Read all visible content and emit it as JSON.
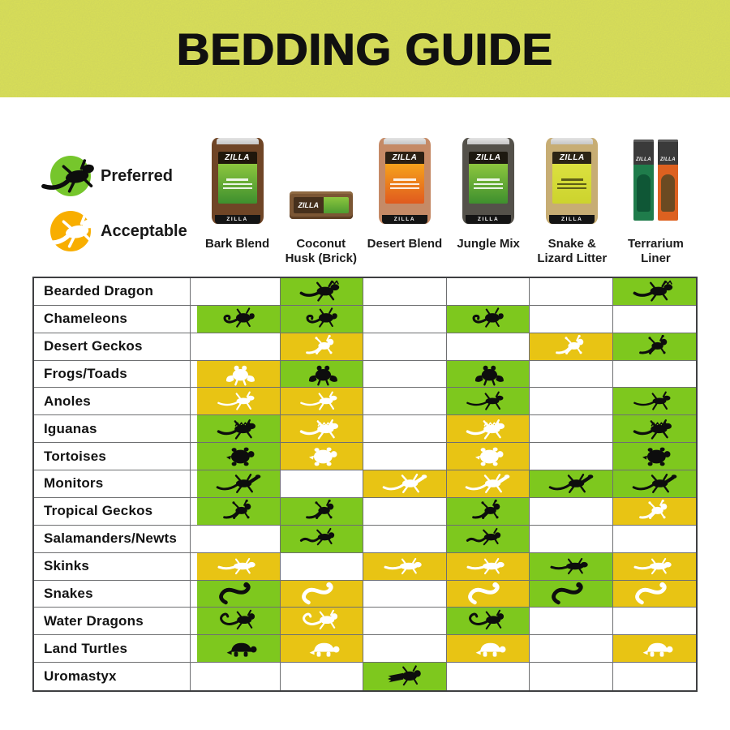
{
  "header": {
    "title": "BEDDING GUIDE"
  },
  "brand": "ZILLA",
  "legend": {
    "preferred": "Preferred",
    "acceptable": "Acceptable"
  },
  "colors": {
    "banner_lime": "#dde455",
    "preferred_green": "#7ec81e",
    "acceptable_yellow": "#e8c414",
    "legend_preferred_green": "#76c62c",
    "legend_acceptable_orange": "#f8ae00"
  },
  "products": [
    {
      "name": "Bark Blend",
      "lines": [
        "Bark Blend"
      ],
      "type": "bag",
      "body": "#6f4526",
      "label_top": "#8cc63e",
      "label_bottom": "#3e8f2e",
      "dark_lines": false
    },
    {
      "name": "Coconut Husk (Brick)",
      "lines": [
        "Coconut",
        "Husk (Brick)"
      ],
      "type": "brick",
      "body": "#7b5634",
      "label_top": "#8cc63e",
      "label_bottom": "#4d9b30",
      "dark_lines": false
    },
    {
      "name": "Desert Blend",
      "lines": [
        "Desert Blend"
      ],
      "type": "bag",
      "body": "#c58a66",
      "label_top": "#f6a21c",
      "label_bottom": "#e05a1e",
      "dark_lines": false
    },
    {
      "name": "Jungle Mix",
      "lines": [
        "Jungle Mix"
      ],
      "type": "bag",
      "body": "#54514a",
      "label_top": "#8cc63e",
      "label_bottom": "#3e8f2e",
      "dark_lines": false
    },
    {
      "name": "Snake & Lizard Litter",
      "lines": [
        "Snake &",
        "Lizard Litter"
      ],
      "type": "bag",
      "body": "#c7ad74",
      "label_top": "#dce13f",
      "label_bottom": "#ccd32e",
      "dark_lines": true
    },
    {
      "name": "Terrarium Liner",
      "lines": [
        "Terrarium",
        "Liner"
      ],
      "type": "liner",
      "body": "#3a3a3a",
      "left_panel": "#1f7c4b",
      "left_swatch": "#0f5736",
      "right_panel": "#dd6120",
      "right_swatch": "#6b4a22",
      "dark_lines": false
    }
  ],
  "chart_data": {
    "type": "table",
    "title": "BEDDING GUIDE",
    "cell_values": [
      "preferred",
      "acceptable",
      "none"
    ],
    "value_style": {
      "preferred": "green cell with black animal silhouette",
      "acceptable": "yellow cell with white animal silhouette",
      "none": "empty white cell"
    },
    "columns": [
      "Bark Blend",
      "Coconut Husk (Brick)",
      "Desert Blend",
      "Jungle Mix",
      "Snake & Lizard Litter",
      "Terrarium Liner"
    ],
    "rows": [
      {
        "label": "Bearded Dragon",
        "icon": "bearded-dragon",
        "values": [
          "none",
          "preferred",
          "none",
          "none",
          "none",
          "preferred"
        ]
      },
      {
        "label": "Chameleons",
        "icon": "chameleon",
        "values": [
          "preferred",
          "preferred",
          "none",
          "preferred",
          "none",
          "none"
        ]
      },
      {
        "label": "Desert Geckos",
        "icon": "gecko",
        "values": [
          "none",
          "acceptable",
          "none",
          "none",
          "acceptable",
          "preferred"
        ]
      },
      {
        "label": "Frogs/Toads",
        "icon": "frog",
        "values": [
          "acceptable",
          "preferred",
          "none",
          "preferred",
          "none",
          "none"
        ]
      },
      {
        "label": "Anoles",
        "icon": "anole",
        "values": [
          "acceptable",
          "acceptable",
          "none",
          "preferred",
          "none",
          "preferred"
        ]
      },
      {
        "label": "Iguanas",
        "icon": "iguana",
        "values": [
          "preferred",
          "acceptable",
          "none",
          "acceptable",
          "none",
          "preferred"
        ]
      },
      {
        "label": "Tortoises",
        "icon": "tortoise",
        "values": [
          "preferred",
          "acceptable",
          "none",
          "acceptable",
          "none",
          "preferred"
        ]
      },
      {
        "label": "Monitors",
        "icon": "monitor",
        "values": [
          "preferred",
          "none",
          "acceptable",
          "acceptable",
          "preferred",
          "preferred"
        ]
      },
      {
        "label": "Tropical Geckos",
        "icon": "gecko",
        "values": [
          "preferred",
          "preferred",
          "none",
          "preferred",
          "none",
          "acceptable"
        ]
      },
      {
        "label": "Salamanders/Newts",
        "icon": "salamander",
        "values": [
          "none",
          "preferred",
          "none",
          "preferred",
          "none",
          "none"
        ]
      },
      {
        "label": "Skinks",
        "icon": "skink",
        "values": [
          "acceptable",
          "none",
          "acceptable",
          "acceptable",
          "preferred",
          "acceptable"
        ]
      },
      {
        "label": "Snakes",
        "icon": "snake",
        "values": [
          "preferred",
          "acceptable",
          "none",
          "acceptable",
          "preferred",
          "acceptable"
        ]
      },
      {
        "label": "Water Dragons",
        "icon": "water-dragon",
        "values": [
          "preferred",
          "acceptable",
          "none",
          "preferred",
          "none",
          "none"
        ]
      },
      {
        "label": "Land Turtles",
        "icon": "turtle",
        "values": [
          "preferred",
          "acceptable",
          "none",
          "acceptable",
          "none",
          "acceptable"
        ]
      },
      {
        "label": "Uromastyx",
        "icon": "uromastyx",
        "values": [
          "none",
          "none",
          "preferred",
          "none",
          "none",
          "none"
        ]
      }
    ]
  }
}
